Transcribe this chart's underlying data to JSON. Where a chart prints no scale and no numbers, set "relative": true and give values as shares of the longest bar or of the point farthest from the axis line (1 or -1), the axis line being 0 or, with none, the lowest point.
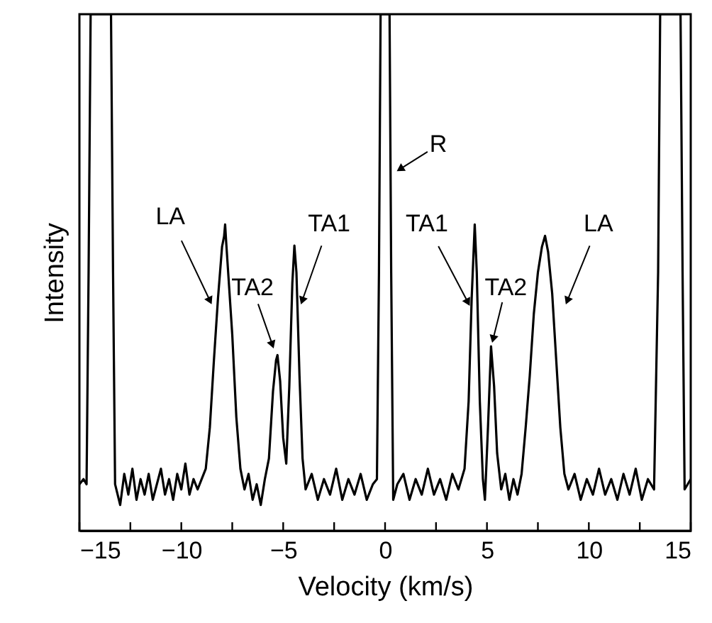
{
  "chart_data": {
    "type": "line",
    "relative": true,
    "xlabel": "Velocity (km/s)",
    "ylabel": "Intensity",
    "xlim": [
      -15,
      15
    ],
    "xticks": [
      -15,
      {
        "value": -12.5,
        "label": null
      },
      -10,
      {
        "value": -7.5,
        "label": null
      },
      -5,
      {
        "value": -2.5,
        "label": null
      },
      0,
      {
        "value": 2.5,
        "label": null
      },
      5,
      {
        "value": 7.5,
        "label": null
      },
      10,
      {
        "value": 12.5,
        "label": null
      },
      15
    ],
    "grid": false,
    "line_style": "solid",
    "annotations": [
      {
        "text": "LA",
        "x": -8.59,
        "y": 0.445
      },
      {
        "text": "TA2",
        "x": -5.53,
        "y": 0.36
      },
      {
        "text": "TA1",
        "x": -4.07,
        "y": 0.445
      },
      {
        "text": "R",
        "x": 0.73,
        "y": 0.7
      },
      {
        "text": "TA1",
        "x": 4.07,
        "y": 0.442
      },
      {
        "text": "TA2",
        "x": 5.3,
        "y": 0.371
      },
      {
        "text": "LA",
        "x": 8.94,
        "y": 0.445
      }
    ],
    "series": [
      {
        "color": "#000000",
        "x": [
          -15,
          -14.8,
          -14.65,
          -14.55,
          -14.45,
          -13.45,
          -13.35,
          -13.25,
          -13.0,
          -12.8,
          -12.6,
          -12.4,
          -12.2,
          -12.0,
          -11.8,
          -11.6,
          -11.4,
          -11.2,
          -11.0,
          -10.8,
          -10.6,
          -10.4,
          -10.2,
          -10.0,
          -9.8,
          -9.6,
          -9.4,
          -9.2,
          -9.0,
          -8.8,
          -8.6,
          -8.4,
          -8.2,
          -8.0,
          -7.9,
          -7.85,
          -7.8,
          -7.7,
          -7.5,
          -7.3,
          -7.1,
          -6.9,
          -6.7,
          -6.5,
          -6.3,
          -6.1,
          -5.9,
          -5.7,
          -5.5,
          -5.35,
          -5.28,
          -5.15,
          -5.0,
          -4.85,
          -4.7,
          -4.55,
          -4.45,
          -4.35,
          -4.2,
          -4.05,
          -3.9,
          -3.6,
          -3.3,
          -3.0,
          -2.7,
          -2.4,
          -2.1,
          -1.8,
          -1.5,
          -1.2,
          -0.9,
          -0.6,
          -0.4,
          -0.3,
          -0.22,
          0.22,
          0.3,
          0.4,
          0.6,
          0.9,
          1.2,
          1.5,
          1.8,
          2.1,
          2.4,
          2.7,
          3.0,
          3.3,
          3.6,
          3.9,
          4.1,
          4.25,
          4.4,
          4.5,
          4.65,
          4.8,
          4.9,
          5.05,
          5.2,
          5.35,
          5.5,
          5.7,
          5.9,
          6.1,
          6.3,
          6.5,
          6.7,
          6.9,
          7.1,
          7.3,
          7.5,
          7.7,
          7.85,
          8.0,
          8.2,
          8.4,
          8.6,
          8.8,
          9.0,
          9.3,
          9.6,
          9.9,
          10.2,
          10.5,
          10.8,
          11.1,
          11.4,
          11.7,
          12.0,
          12.3,
          12.6,
          12.9,
          13.2,
          13.4,
          13.5,
          14.5,
          14.6,
          14.7,
          15.0
        ],
        "values": [
          0.09,
          0.1,
          0.09,
          0.5,
          1,
          1,
          0.5,
          0.09,
          0.05,
          0.11,
          0.07,
          0.12,
          0.06,
          0.1,
          0.07,
          0.11,
          0.06,
          0.09,
          0.12,
          0.07,
          0.1,
          0.06,
          0.11,
          0.08,
          0.13,
          0.07,
          0.1,
          0.08,
          0.1,
          0.12,
          0.2,
          0.33,
          0.45,
          0.55,
          0.57,
          0.593,
          0.56,
          0.5,
          0.38,
          0.22,
          0.12,
          0.08,
          0.11,
          0.06,
          0.09,
          0.05,
          0.1,
          0.14,
          0.27,
          0.33,
          0.34,
          0.29,
          0.18,
          0.13,
          0.28,
          0.48,
          0.552,
          0.5,
          0.3,
          0.14,
          0.08,
          0.11,
          0.06,
          0.1,
          0.07,
          0.12,
          0.06,
          0.1,
          0.07,
          0.11,
          0.06,
          0.09,
          0.1,
          0.5,
          1,
          1,
          0.5,
          0.06,
          0.09,
          0.11,
          0.06,
          0.1,
          0.07,
          0.12,
          0.07,
          0.1,
          0.06,
          0.11,
          0.08,
          0.12,
          0.25,
          0.45,
          0.593,
          0.5,
          0.25,
          0.1,
          0.06,
          0.2,
          0.357,
          0.28,
          0.15,
          0.08,
          0.11,
          0.06,
          0.1,
          0.07,
          0.11,
          0.2,
          0.3,
          0.42,
          0.5,
          0.55,
          0.571,
          0.54,
          0.46,
          0.33,
          0.2,
          0.11,
          0.08,
          0.11,
          0.06,
          0.1,
          0.07,
          0.12,
          0.07,
          0.1,
          0.06,
          0.11,
          0.07,
          0.12,
          0.06,
          0.1,
          0.08,
          0.5,
          1,
          1,
          0.5,
          0.08,
          0.1
        ]
      }
    ]
  }
}
